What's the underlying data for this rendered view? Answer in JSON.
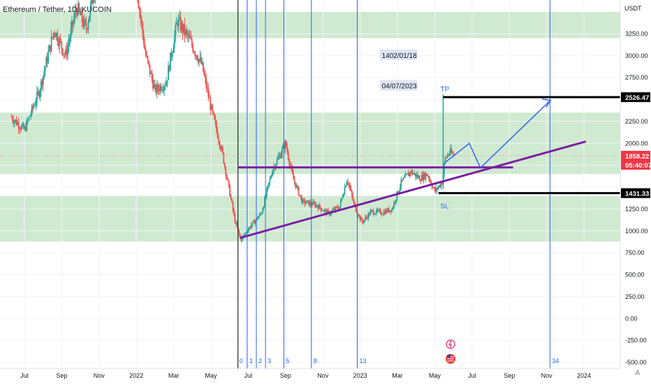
{
  "header": {
    "title": "Ethereum / Tether, 1D, KUCOIN",
    "currency": "USDT",
    "auto_label": "A"
  },
  "chart_data": {
    "type": "candlestick",
    "title": "Ethereum / Tether, 1D, KUCOIN",
    "y_axis": {
      "unit": "USDT",
      "ylim": [
        -500,
        3500
      ],
      "ticks": [
        "3250.00",
        "3000.00",
        "2750.00",
        "2500.00",
        "2250.00",
        "2000.00",
        "1750.00",
        "1500.00",
        "1250.00",
        "1000.00",
        "750.00",
        "500.00",
        "250.00",
        "0.00",
        "-250.00",
        "-500.00"
      ]
    },
    "x_axis": {
      "ticks": [
        "Jul",
        "Sep",
        "Nov",
        "2022",
        "Mar",
        "May",
        "Jul",
        "Sep",
        "Nov",
        "2023",
        "Mar",
        "May",
        "Jul",
        "Sep",
        "Nov",
        "2024"
      ]
    },
    "grid": true,
    "price_labels": [
      {
        "name": "tp_level",
        "text": "2526.47",
        "value": 2526.47,
        "color": "#000000"
      },
      {
        "name": "current_price",
        "text": "1858.22",
        "value": 1858.22,
        "color": "#f23645"
      },
      {
        "name": "countdown",
        "text": "05:40:07",
        "value": 1810,
        "color": "#f23645"
      },
      {
        "name": "sl_level",
        "text": "1431.33",
        "value": 1431.33,
        "color": "#000000"
      }
    ],
    "zones": [
      {
        "from": 3200,
        "to": 3500
      },
      {
        "from": 1650,
        "to": 2350
      },
      {
        "from": 880,
        "to": 1400
      }
    ],
    "annotations": {
      "date_persian": "1402/01/18",
      "date_gregorian": "04/07/2023",
      "tp_label": "TP",
      "sl_label": "SL"
    },
    "fibonacci_time_labels": [
      "0",
      "1",
      "2",
      "3",
      "5",
      "8",
      "13",
      "34"
    ],
    "colors": {
      "up": "#26a69a",
      "down": "#ef5350",
      "zone": "#c8e6c9",
      "trendline": "#7b1fa2",
      "blue": "#2962ff",
      "level": "#000000",
      "current": "#f23645"
    },
    "key_prices": {
      "2021_high": 4000,
      "2022_june_low": 900,
      "2022_aug_high": 2030,
      "2022_nov_low": 1080,
      "2023_march_spike": 2560,
      "current": 1858.22
    }
  }
}
